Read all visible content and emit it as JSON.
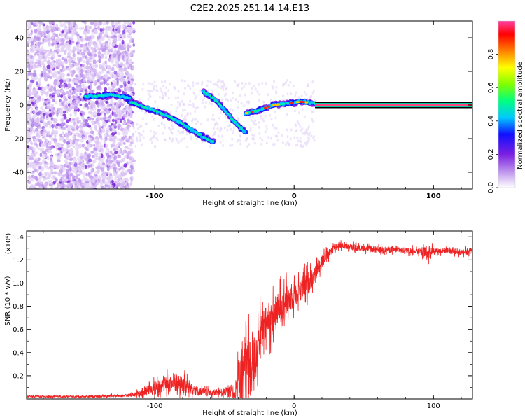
{
  "title": "C2E2.2025.251.14.14.E13",
  "chart_data": [
    {
      "type": "heatmap",
      "name": "spectrogram",
      "xlabel": "Height of straight line (km)",
      "ylabel": "Frequency (Hz)",
      "xlim": [
        -192,
        128
      ],
      "ylim": [
        -50,
        50
      ],
      "x_ticks": [
        -100,
        0,
        100
      ],
      "x_tick_labels": [
        "-100",
        "0",
        "100"
      ],
      "y_ticks": [
        -40,
        -20,
        0,
        20,
        40
      ],
      "y_tick_labels": [
        "-40",
        "-20",
        "0",
        "20",
        "40"
      ],
      "colorbar": {
        "label": "Normalized spectral amplitude",
        "range": [
          0,
          1
        ],
        "ticks": [
          0.0,
          0.2,
          0.4,
          0.6,
          0.8
        ],
        "tick_labels": [
          "0.0",
          "0.2",
          "0.4",
          "0.6",
          "0.8"
        ],
        "colormap": [
          "#ffffff",
          "#c9a6f0",
          "#7b1fe0",
          "#1010ff",
          "#00c8ff",
          "#00ff80",
          "#80ff00",
          "#ffff00",
          "#ff8000",
          "#ff0000",
          "#ff40a0"
        ]
      },
      "noise_region_x": [
        -192,
        -115
      ],
      "traces": [
        {
          "name": "main-trace",
          "x": [
            -118,
            -105,
            -95,
            -85,
            -75,
            -65,
            -58
          ],
          "y": [
            2,
            -2,
            -5,
            -9,
            -14,
            -19,
            -22
          ]
        },
        {
          "name": "upper-branch",
          "x": [
            -150,
            -130,
            -118
          ],
          "y": [
            5,
            6,
            4
          ]
        },
        {
          "name": "secondary-branch",
          "x": [
            -65,
            -55,
            -45,
            -38,
            -35
          ],
          "y": [
            8,
            2,
            -8,
            -14,
            -16
          ]
        },
        {
          "name": "recovery-trace",
          "x": [
            -35,
            -25,
            -15,
            -5,
            5,
            15
          ],
          "y": [
            -5,
            -3,
            0,
            1,
            2,
            1
          ]
        },
        {
          "name": "steady-line",
          "x": [
            15,
            128
          ],
          "y": [
            0,
            0
          ]
        }
      ]
    },
    {
      "type": "line",
      "name": "snr",
      "xlabel": "Height of straight line (km)",
      "ylabel": "SNR (10 * v/v)",
      "y_multiplier": "(x10⁴)",
      "xlim": [
        -192,
        128
      ],
      "ylim": [
        0,
        1.45
      ],
      "x_ticks": [
        -100,
        0,
        100
      ],
      "x_tick_labels": [
        "-100",
        "0",
        "100"
      ],
      "y_ticks": [
        0.2,
        0.4,
        0.6,
        0.8,
        1.0,
        1.2,
        1.4
      ],
      "y_tick_labels": [
        "0.2",
        "0.4",
        "0.6",
        "0.8",
        "1.0",
        "1.2",
        "1.4"
      ],
      "color": "#ee2222",
      "envelope": {
        "x": [
          -192,
          -150,
          -120,
          -110,
          -100,
          -90,
          -85,
          -80,
          -75,
          -70,
          -60,
          -50,
          -45,
          -40,
          -38,
          -36,
          -34,
          -32,
          -30,
          -27,
          -25,
          -22,
          -20,
          -15,
          -10,
          -5,
          0,
          5,
          10,
          15,
          20,
          25,
          28,
          30,
          32,
          35,
          40,
          50,
          60,
          70,
          80,
          90,
          95,
          97,
          100,
          110,
          120,
          128
        ],
        "base": [
          0.02,
          0.02,
          0.03,
          0.05,
          0.1,
          0.13,
          0.14,
          0.12,
          0.1,
          0.07,
          0.05,
          0.06,
          0.07,
          0.1,
          0.2,
          0.15,
          0.3,
          0.2,
          0.3,
          0.4,
          0.55,
          0.6,
          0.65,
          0.7,
          0.8,
          0.85,
          0.9,
          0.95,
          1.0,
          1.08,
          1.2,
          1.25,
          1.3,
          1.32,
          1.33,
          1.32,
          1.31,
          1.3,
          1.29,
          1.29,
          1.28,
          1.28,
          1.27,
          1.27,
          1.28,
          1.28,
          1.27,
          1.28
        ],
        "amp": [
          0.015,
          0.015,
          0.02,
          0.06,
          0.1,
          0.14,
          0.18,
          0.15,
          0.12,
          0.08,
          0.05,
          0.06,
          0.1,
          0.4,
          0.6,
          0.6,
          0.5,
          0.55,
          0.45,
          0.4,
          0.35,
          0.35,
          0.3,
          0.3,
          0.28,
          0.25,
          0.22,
          0.2,
          0.2,
          0.15,
          0.1,
          0.08,
          0.08,
          0.09,
          0.06,
          0.05,
          0.05,
          0.05,
          0.05,
          0.05,
          0.05,
          0.05,
          0.1,
          0.12,
          0.05,
          0.05,
          0.05,
          0.05
        ]
      }
    }
  ]
}
